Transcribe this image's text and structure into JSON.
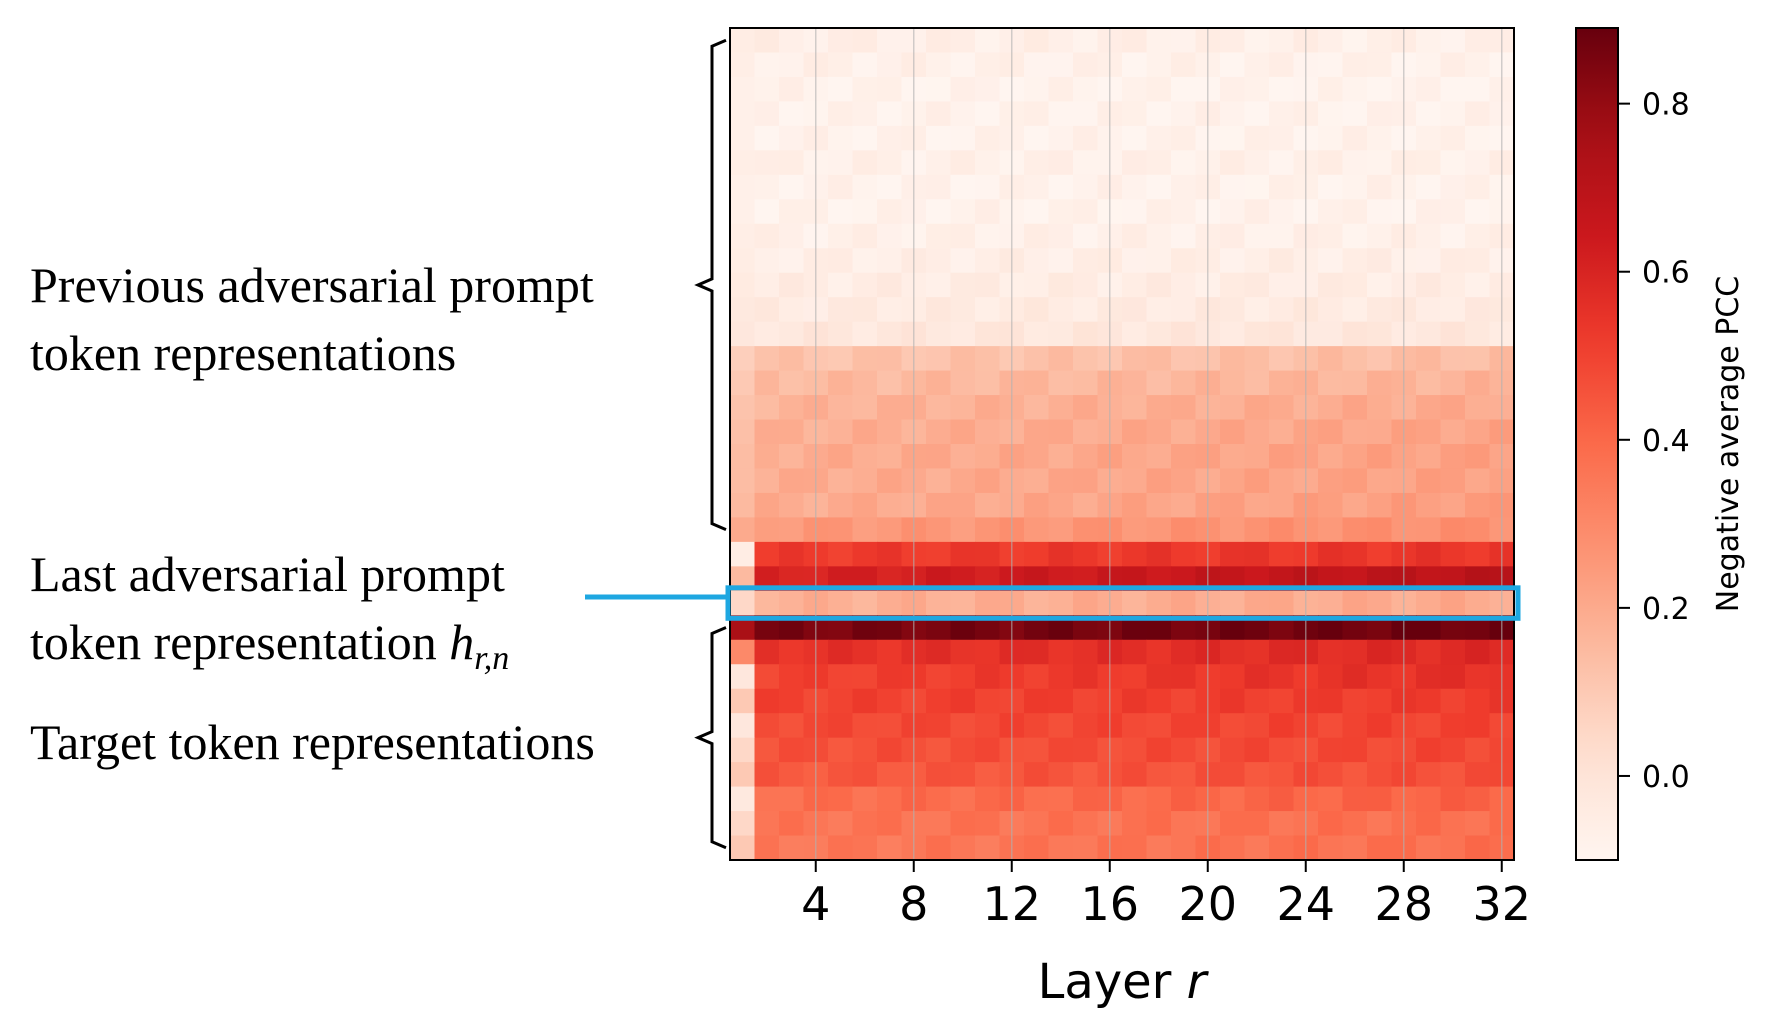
{
  "chart_data": {
    "type": "heatmap",
    "xlabel": "Layer r",
    "xlabel_text": "Layer ",
    "xlabel_var": "r",
    "x_ticks": [
      4,
      8,
      12,
      16,
      20,
      24,
      28,
      32
    ],
    "n_layers": 32,
    "n_rows": 34,
    "colorbar": {
      "label": "Negative average PCC",
      "ticks": [
        "0.0",
        "0.2",
        "0.4",
        "0.6",
        "0.8"
      ],
      "tick_values": [
        0.0,
        0.2,
        0.4,
        0.6,
        0.8
      ],
      "range": [
        -0.1,
        0.89
      ],
      "colormap": "Reds"
    },
    "row_groups": [
      {
        "name": "previous-adversarial-prompt",
        "rows": [
          0,
          20
        ]
      },
      {
        "name": "last-adversarial-prompt",
        "rows": [
          23,
          23
        ]
      },
      {
        "name": "target",
        "rows": [
          24,
          33
        ]
      }
    ],
    "row_values": [
      [
        -0.06,
        -0.07
      ],
      [
        -0.07,
        -0.08
      ],
      [
        -0.08,
        -0.09
      ],
      [
        -0.08,
        -0.08
      ],
      [
        -0.08,
        -0.08
      ],
      [
        -0.07,
        -0.07
      ],
      [
        -0.08,
        -0.08
      ],
      [
        -0.08,
        -0.08
      ],
      [
        -0.07,
        -0.07
      ],
      [
        -0.06,
        -0.06
      ],
      [
        -0.05,
        -0.05
      ],
      [
        -0.04,
        -0.04
      ],
      [
        -0.02,
        -0.02
      ],
      [
        0.12,
        0.14
      ],
      [
        0.15,
        0.17
      ],
      [
        0.17,
        0.2
      ],
      [
        0.18,
        0.22
      ],
      [
        0.19,
        0.23
      ],
      [
        0.19,
        0.23
      ],
      [
        0.19,
        0.24
      ],
      [
        0.25,
        0.28
      ],
      [
        0.52,
        0.54
      ],
      [
        0.6,
        0.7
      ],
      [
        0.18,
        0.2
      ],
      [
        0.85,
        0.88
      ],
      [
        0.55,
        0.58
      ],
      [
        0.5,
        0.56
      ],
      [
        0.5,
        0.52
      ],
      [
        0.48,
        0.5
      ],
      [
        0.46,
        0.49
      ],
      [
        0.44,
        0.47
      ],
      [
        0.38,
        0.42
      ],
      [
        0.36,
        0.38
      ],
      [
        0.35,
        0.38
      ]
    ],
    "first_col_values": [
      -0.05,
      -0.06,
      -0.07,
      -0.07,
      -0.07,
      -0.06,
      -0.07,
      -0.07,
      -0.06,
      -0.05,
      -0.04,
      -0.03,
      -0.02,
      0.08,
      0.1,
      0.12,
      0.13,
      0.14,
      0.14,
      0.15,
      0.2,
      -0.05,
      0.15,
      0.05,
      0.75,
      0.3,
      -0.02,
      0.1,
      -0.02,
      0.05,
      0.1,
      -0.03,
      0.05,
      0.1
    ]
  },
  "annotations": {
    "previous": [
      "Previous adversarial prompt",
      "token representations"
    ],
    "last_line1": "Last adversarial prompt",
    "last_line2_text": "token representation ",
    "last_var_main": "h",
    "last_var_sub": "r,n",
    "target": "Target token representations",
    "highlight_color": "#1ea7e1"
  }
}
